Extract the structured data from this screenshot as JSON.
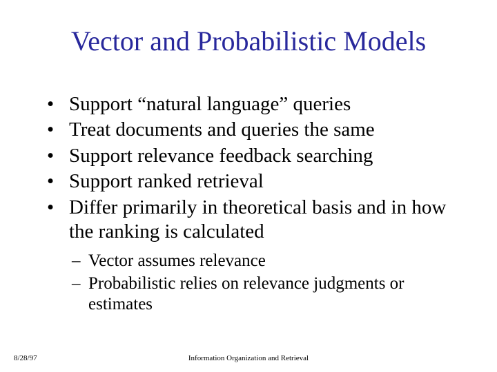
{
  "title": "Vector and Probabilistic Models",
  "bullets": {
    "b0": "Support “natural language” queries",
    "b1": "Treat documents and queries the same",
    "b2": "Support relevance feedback searching",
    "b3": "Support ranked retrieval",
    "b4": "Differ primarily in theoretical basis and in how the ranking is calculated"
  },
  "subbullets": {
    "s0": "Vector assumes relevance",
    "s1": "Probabilistic relies on relevance judgments or estimates"
  },
  "footer": {
    "date": "8/28/97",
    "center": "Information Organization and Retrieval"
  },
  "colors": {
    "title": "#28289c",
    "body_text": "#000000",
    "background": "#ffffff"
  },
  "fonts": {
    "title_size_pt": 40,
    "body_size_pt": 29,
    "sub_size_pt": 25,
    "footer_size_pt": 11,
    "family": "Times New Roman"
  }
}
